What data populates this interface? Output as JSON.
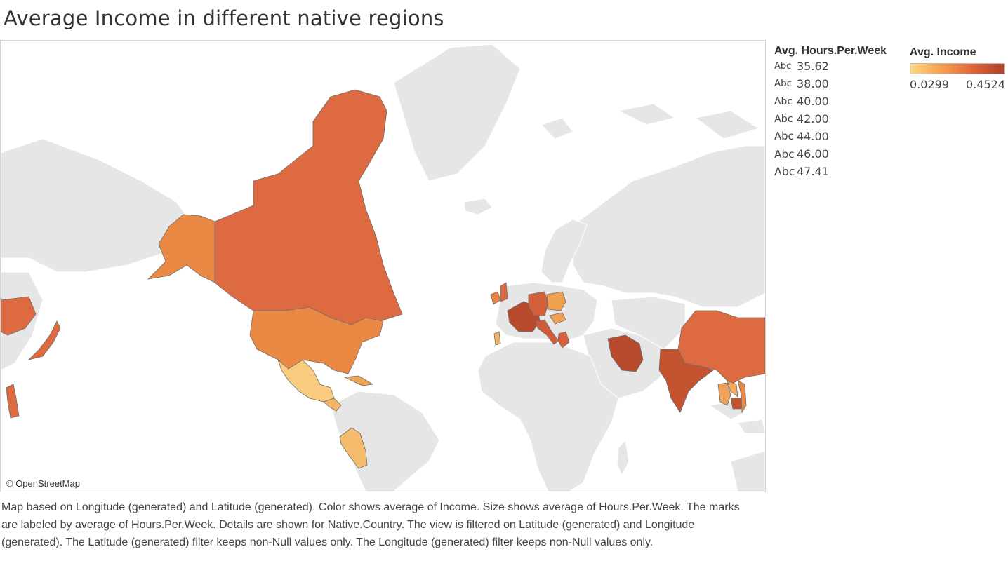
{
  "title": "Average Income in different native regions",
  "attribution": "© OpenStreetMap",
  "size_legend": {
    "title": "Avg. Hours.Per.Week",
    "marker_text": "Abc",
    "values": [
      "35.62",
      "38.00",
      "40.00",
      "42.00",
      "44.00",
      "46.00",
      "47.41"
    ]
  },
  "color_legend": {
    "title": "Avg. Income",
    "min": "0.0299",
    "max": "0.4524",
    "colors": [
      "#fbd783",
      "#f4a050",
      "#e2643a",
      "#a9402a"
    ]
  },
  "caption": "Map based on Longitude (generated) and Latitude (generated).  Color shows average of Income.  Size shows average of Hours.Per.Week.  The marks are labeled by average of Hours.Per.Week.  Details are shown for Native.Country. The view is filtered on Latitude (generated) and Longitude (generated). The Latitude (generated) filter keeps non-Null values only. The Longitude (generated) filter keeps non-Null values only.",
  "base_color": "#e6e6e6",
  "countries": [
    {
      "name": "Canada",
      "color": "#dd6a40"
    },
    {
      "name": "Alaska",
      "color": "#e98944"
    },
    {
      "name": "United-States",
      "color": "#e98944"
    },
    {
      "name": "Mexico",
      "color": "#f8cb7e"
    },
    {
      "name": "Cuba",
      "color": "#eda455"
    },
    {
      "name": "Central-America",
      "color": "#f4b565"
    },
    {
      "name": "Peru",
      "color": "#f5bb6c"
    },
    {
      "name": "Ireland",
      "color": "#e9833f"
    },
    {
      "name": "England",
      "color": "#dd6a40"
    },
    {
      "name": "France",
      "color": "#b84a2e"
    },
    {
      "name": "Germany",
      "color": "#d35f38"
    },
    {
      "name": "Poland",
      "color": "#f0a04f"
    },
    {
      "name": "Hungary",
      "color": "#f0a04f"
    },
    {
      "name": "Portugal",
      "color": "#f3b467"
    },
    {
      "name": "Italy",
      "color": "#d05c37"
    },
    {
      "name": "Greece",
      "color": "#d5603a"
    },
    {
      "name": "Iran",
      "color": "#b84a2e"
    },
    {
      "name": "India",
      "color": "#c4532f"
    },
    {
      "name": "China",
      "color": "#dd6a40"
    },
    {
      "name": "Laos",
      "color": "#f3ad5c"
    },
    {
      "name": "Thailand",
      "color": "#eea257"
    },
    {
      "name": "Cambodia",
      "color": "#c4532f"
    },
    {
      "name": "Vietnam",
      "color": "#e98944"
    },
    {
      "name": "Japan",
      "color": "#dd6a40"
    },
    {
      "name": "Philippines",
      "color": "#dd6a40"
    },
    {
      "name": "Taiwan",
      "color": "#dd6a40"
    }
  ]
}
